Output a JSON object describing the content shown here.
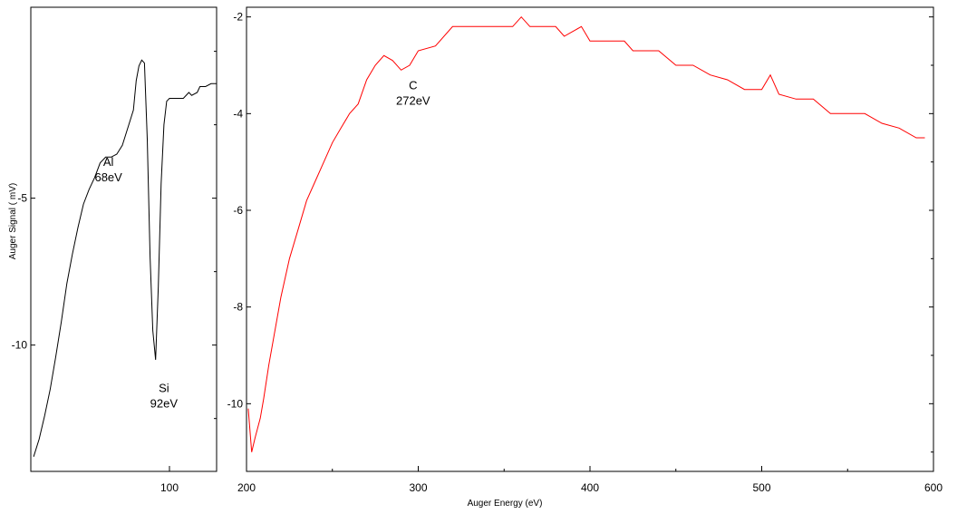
{
  "chart_data": [
    {
      "type": "line",
      "title": "",
      "xlabel": "",
      "ylabel": "Auger Signal ( mV)",
      "xlim": [
        50,
        117
      ],
      "ylim": [
        -14.3,
        1.5
      ],
      "x_ticks": [
        100
      ],
      "y_ticks": [
        -5,
        -10
      ],
      "grid": false,
      "series": [
        {
          "color": "#000000",
          "points": [
            [
              51,
              -13.8
            ],
            [
              53,
              -13.2
            ],
            [
              55,
              -12.4
            ],
            [
              57,
              -11.5
            ],
            [
              59,
              -10.4
            ],
            [
              61,
              -9.2
            ],
            [
              63,
              -7.9
            ],
            [
              65,
              -6.9
            ],
            [
              67,
              -6.0
            ],
            [
              69,
              -5.2
            ],
            [
              71,
              -4.7
            ],
            [
              73,
              -4.3
            ],
            [
              75,
              -3.8
            ],
            [
              77,
              -3.6
            ],
            [
              79,
              -3.6
            ],
            [
              81,
              -3.5
            ],
            [
              83,
              -3.2
            ],
            [
              85,
              -2.6
            ],
            [
              87,
              -2.0
            ],
            [
              88,
              -1.0
            ],
            [
              89,
              -0.5
            ],
            [
              90,
              -0.3
            ],
            [
              91,
              -0.4
            ],
            [
              92,
              -3.0
            ],
            [
              93,
              -7.0
            ],
            [
              94,
              -9.5
            ],
            [
              95,
              -10.5
            ],
            [
              96,
              -8.0
            ],
            [
              97,
              -4.5
            ],
            [
              98,
              -2.5
            ],
            [
              99,
              -1.7
            ],
            [
              100,
              -1.6
            ],
            [
              103,
              -1.6
            ],
            [
              105,
              -1.6
            ],
            [
              107,
              -1.4
            ],
            [
              108,
              -1.5
            ],
            [
              110,
              -1.4
            ],
            [
              111,
              -1.2
            ],
            [
              113,
              -1.2
            ],
            [
              115,
              -1.1
            ],
            [
              117,
              -1.1
            ]
          ]
        }
      ],
      "annotations": [
        {
          "lines": [
            "Al",
            "68eV"
          ],
          "x": 78,
          "y": -3.9
        },
        {
          "lines": [
            "Si",
            "92eV"
          ],
          "x": 98,
          "y": -11.6
        }
      ]
    },
    {
      "type": "line",
      "title": "",
      "xlabel": "Auger Energy (eV)",
      "ylabel": "",
      "xlim": [
        200,
        600
      ],
      "ylim": [
        -11.4,
        -1.8
      ],
      "x_ticks": [
        200,
        300,
        400,
        500,
        600
      ],
      "y_ticks": [
        -2,
        -4,
        -6,
        -8,
        -10
      ],
      "grid": false,
      "series": [
        {
          "color": "#ff0000",
          "points": [
            [
              201,
              -10.1
            ],
            [
              203,
              -11.0
            ],
            [
              205,
              -10.7
            ],
            [
              208,
              -10.3
            ],
            [
              210,
              -9.9
            ],
            [
              213,
              -9.2
            ],
            [
              216,
              -8.6
            ],
            [
              220,
              -7.8
            ],
            [
              225,
              -7.0
            ],
            [
              230,
              -6.4
            ],
            [
              235,
              -5.8
            ],
            [
              240,
              -5.4
            ],
            [
              245,
              -5.0
            ],
            [
              250,
              -4.6
            ],
            [
              255,
              -4.3
            ],
            [
              260,
              -4.0
            ],
            [
              265,
              -3.8
            ],
            [
              270,
              -3.3
            ],
            [
              275,
              -3.0
            ],
            [
              280,
              -2.8
            ],
            [
              285,
              -2.9
            ],
            [
              290,
              -3.1
            ],
            [
              295,
              -3.0
            ],
            [
              300,
              -2.7
            ],
            [
              310,
              -2.6
            ],
            [
              320,
              -2.2
            ],
            [
              340,
              -2.2
            ],
            [
              355,
              -2.2
            ],
            [
              360,
              -2.0
            ],
            [
              365,
              -2.2
            ],
            [
              380,
              -2.2
            ],
            [
              385,
              -2.4
            ],
            [
              390,
              -2.3
            ],
            [
              395,
              -2.2
            ],
            [
              400,
              -2.5
            ],
            [
              420,
              -2.5
            ],
            [
              425,
              -2.7
            ],
            [
              440,
              -2.7
            ],
            [
              450,
              -3.0
            ],
            [
              460,
              -3.0
            ],
            [
              470,
              -3.2
            ],
            [
              480,
              -3.3
            ],
            [
              490,
              -3.5
            ],
            [
              500,
              -3.5
            ],
            [
              505,
              -3.2
            ],
            [
              510,
              -3.6
            ],
            [
              520,
              -3.7
            ],
            [
              530,
              -3.7
            ],
            [
              540,
              -4.0
            ],
            [
              560,
              -4.0
            ],
            [
              570,
              -4.2
            ],
            [
              580,
              -4.3
            ],
            [
              590,
              -4.5
            ],
            [
              595,
              -4.5
            ]
          ]
        }
      ],
      "annotations": [
        {
          "lines": [
            "C",
            "272eV"
          ],
          "x": 297,
          "y": -3.5
        }
      ]
    }
  ]
}
